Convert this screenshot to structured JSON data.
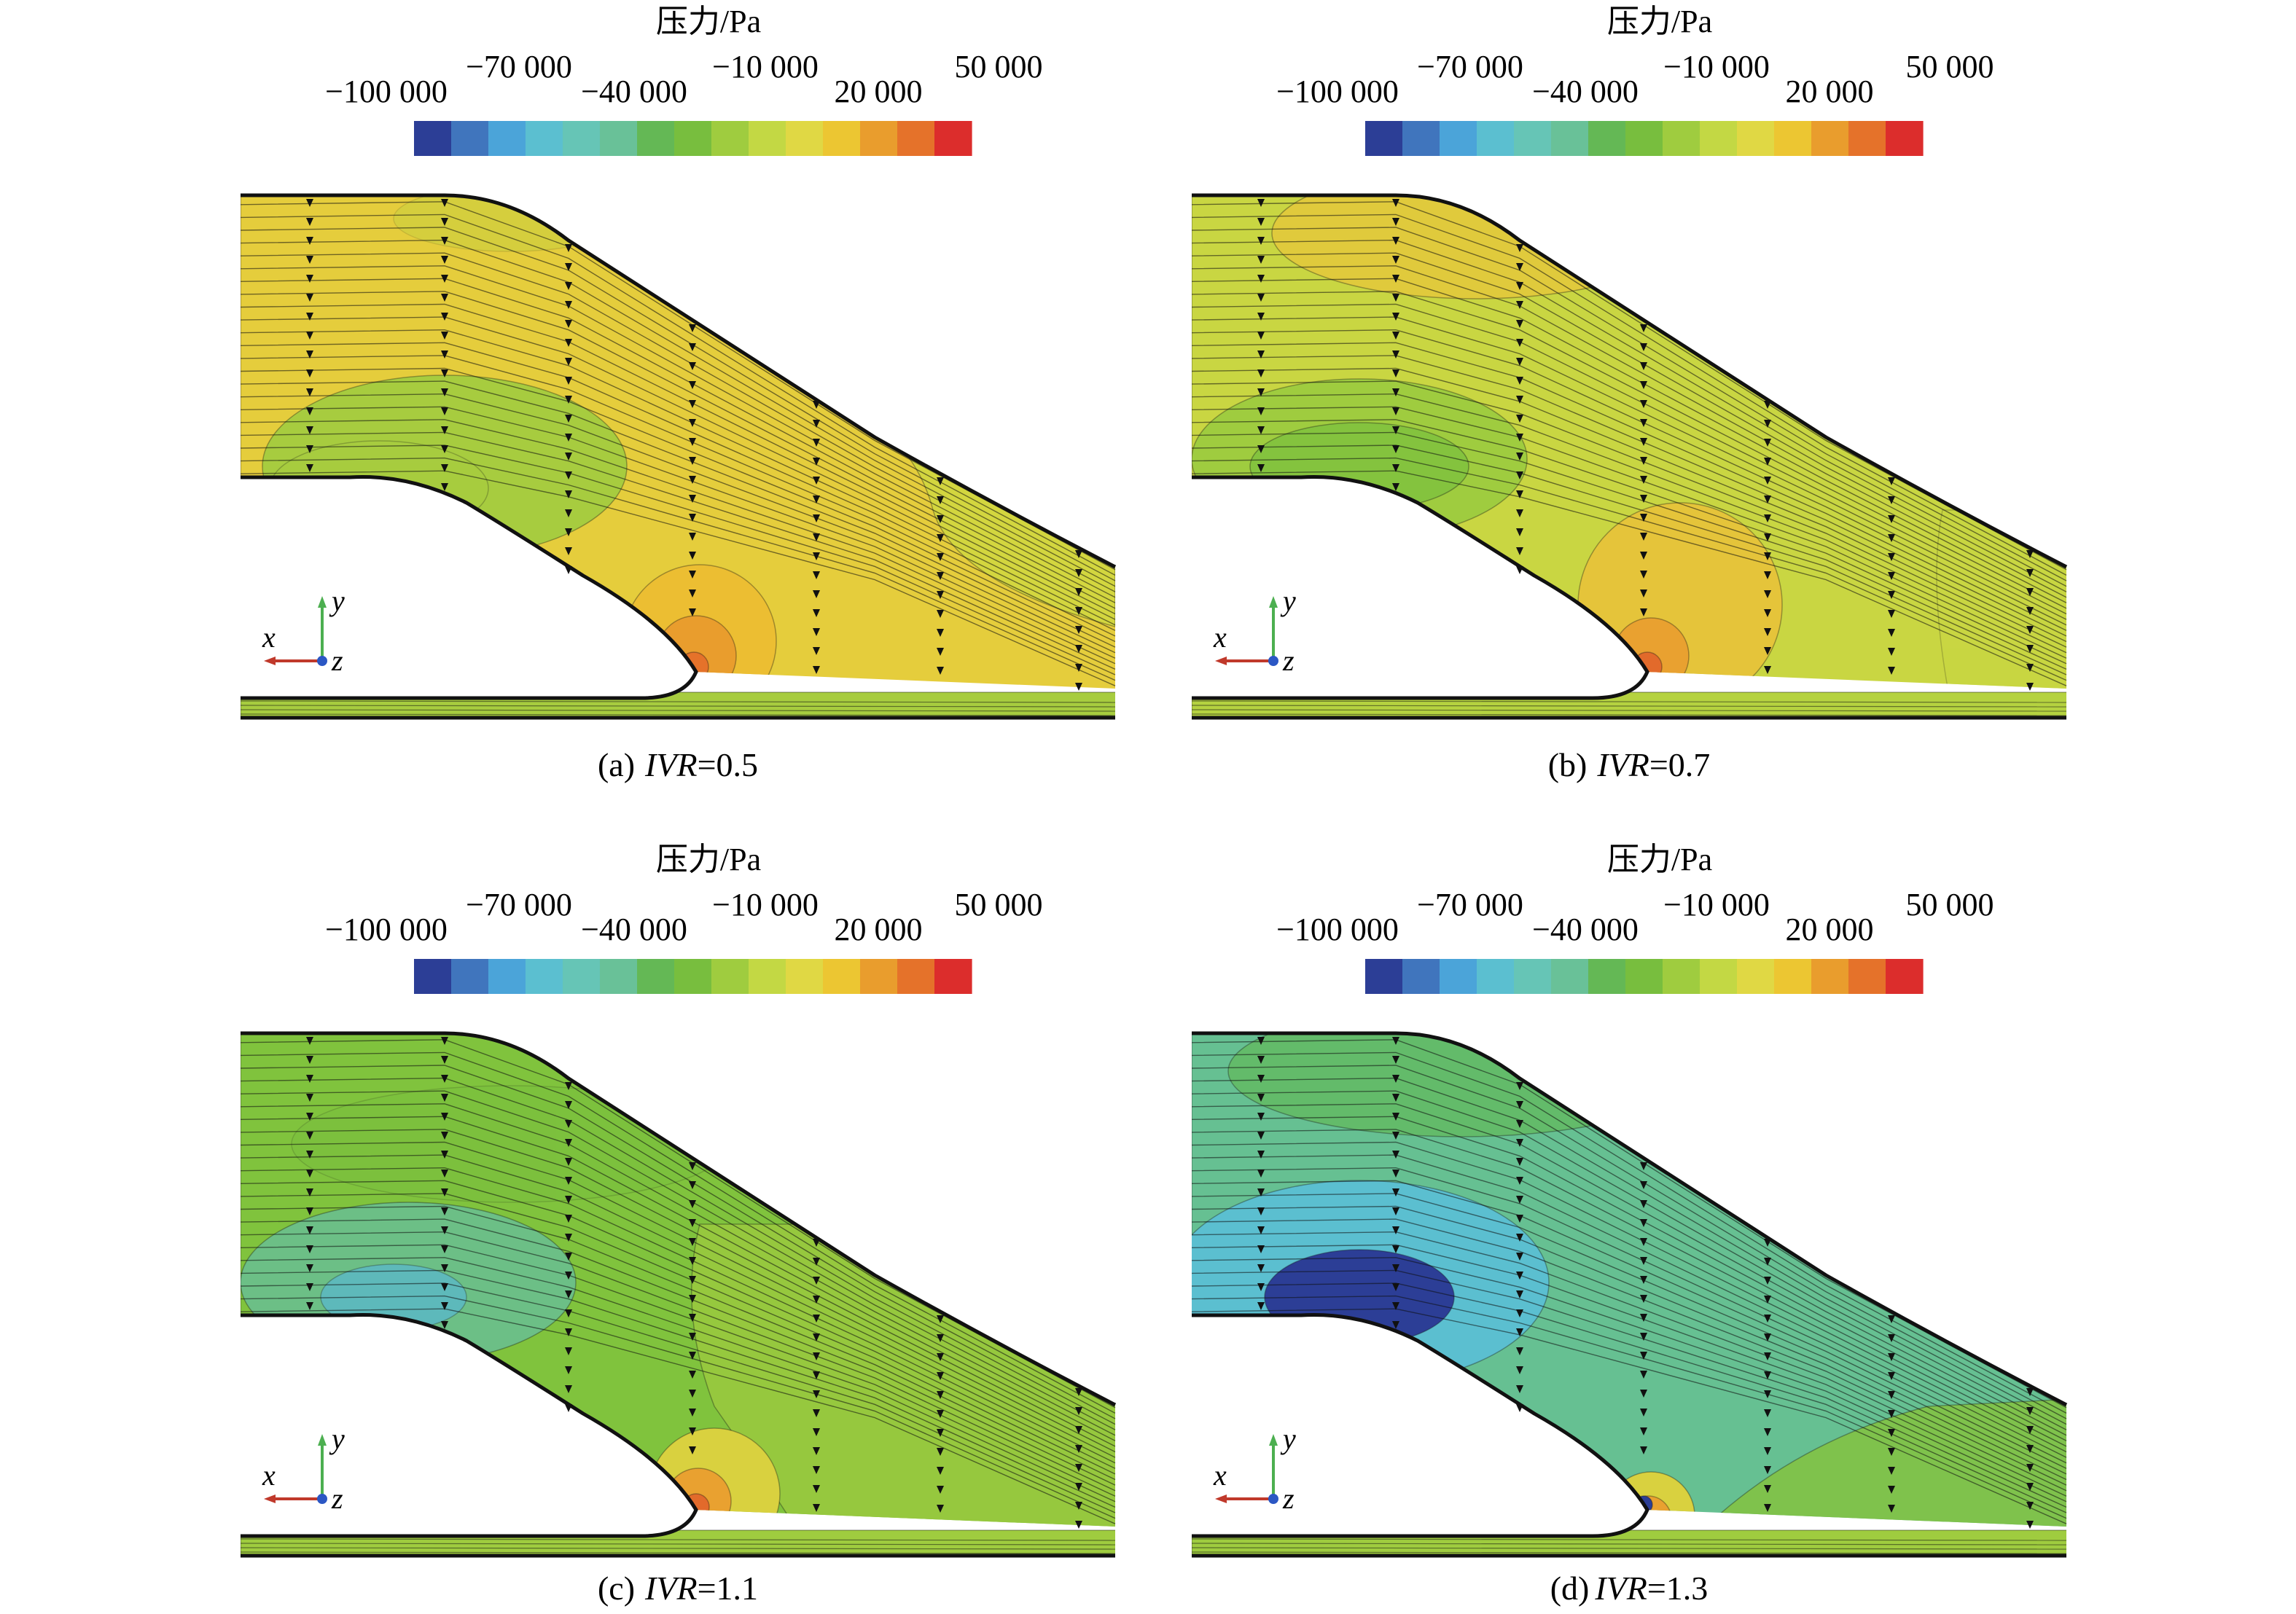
{
  "colorbar": {
    "title": "压力/Pa",
    "tick_labels_upper": [
      "−70 000",
      "−10 000",
      "50 000"
    ],
    "tick_labels_lower": [
      "−100 000",
      "−40 000",
      "20 000"
    ],
    "colors": [
      "#2c3e96",
      "#4075bd",
      "#4ba4d9",
      "#5bbfd0",
      "#66c5b6",
      "#69c198",
      "#64b855",
      "#78be3e",
      "#9fcc3f",
      "#c3d844",
      "#e0d844",
      "#ecc632",
      "#e99d2d",
      "#e5722a",
      "#dc2d2c"
    ]
  },
  "axes_triad": {
    "x": "x",
    "y": "y",
    "z": "z"
  },
  "panels": [
    {
      "label": "(a)",
      "param": "IVR",
      "value": "=0.5",
      "field": {
        "bg": "#e5cd3c",
        "outer_upper": "#d3d63f",
        "lower_channel": "#a7cc3f",
        "blob_a": "#a7cc3f",
        "blob_b": "#a7cc3f",
        "blob_c": "#b8d240",
        "lip_outer": "#ecbe32",
        "lip_inner": "#e99d2d",
        "lip_core": "#e5722a"
      }
    },
    {
      "label": "(b)",
      "param": "IVR",
      "value": "=0.7",
      "field": {
        "bg": "#c9d642",
        "outer_upper": "#c9d642",
        "lower_channel": "#b5d240",
        "blob_a": "#9fcc3f",
        "blob_b": "#84c33e",
        "blob_c": "#e0ca3c",
        "lip_outer": "#e5c43a",
        "lip_inner": "#e9a130",
        "lip_core": "#e26a2b"
      }
    },
    {
      "label": "(c)",
      "param": "IVR",
      "value": "=1.1",
      "field": {
        "bg": "#80c33d",
        "outer_upper": "#96c83e",
        "lower_channel": "#9fcc3f",
        "blob_a": "#6cbf86",
        "blob_b": "#5bb8c8",
        "blob_c": "#78be3e",
        "lip_outer": "#d9d13f",
        "lip_inner": "#e9a130",
        "lip_core": "#e26a2b"
      }
    },
    {
      "label": "(d)",
      "param": "IVR",
      "value": "=1.3",
      "field": {
        "bg": "#66c092",
        "outer_upper": "#7fc24c",
        "lower_channel": "#9fcc3f",
        "blob_a": "#5bbfd0",
        "blob_b": "#2c3e96",
        "blob_c": "#63bb6a",
        "lip_outer": "#d9d13f",
        "lip_inner": "#e9a130",
        "lip_core": "#e26a2b"
      }
    }
  ]
}
